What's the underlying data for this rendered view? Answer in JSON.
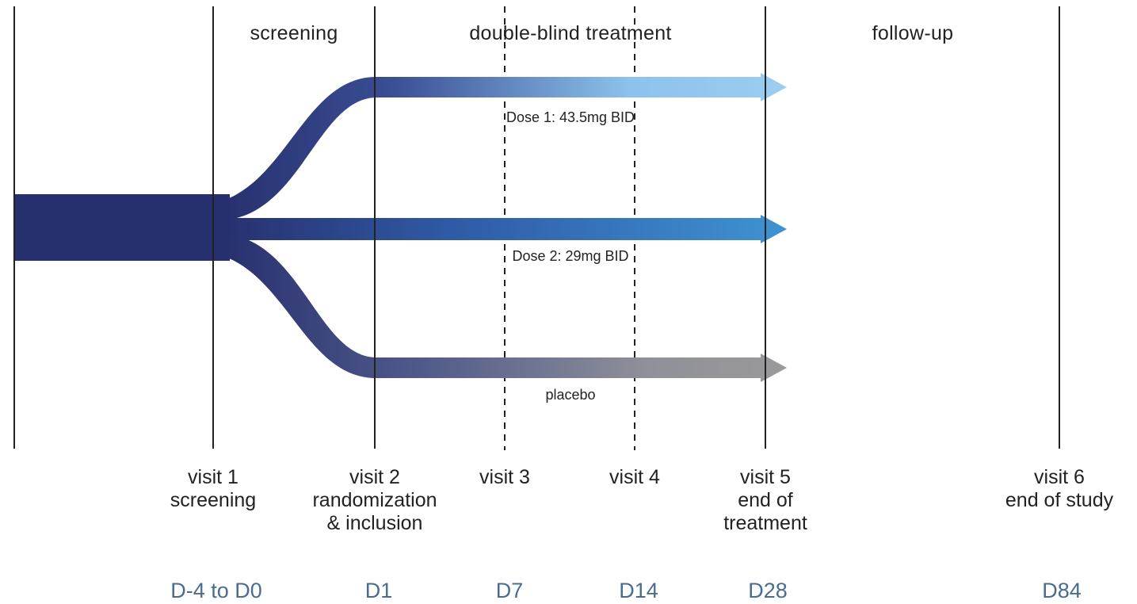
{
  "phases": {
    "screening": "screening",
    "treatment": "double-blind treatment",
    "followup": "follow-up"
  },
  "arms": {
    "dose1": "Dose 1: 43.5mg BID",
    "dose2": "Dose 2: 29mg BID",
    "placebo": "placebo"
  },
  "visits": [
    {
      "title": "visit 1",
      "line2": "screening",
      "line3": ""
    },
    {
      "title": "visit 2",
      "line2": "randomization",
      "line3": "& inclusion"
    },
    {
      "title": "visit 3",
      "line2": "",
      "line3": ""
    },
    {
      "title": "visit 4",
      "line2": "",
      "line3": ""
    },
    {
      "title": "visit 5",
      "line2": "end of",
      "line3": "treatment"
    },
    {
      "title": "visit 6",
      "line2": "end of study",
      "line3": ""
    }
  ],
  "days": [
    "D-4 to D0",
    "D1",
    "D7",
    "D14",
    "D28",
    "D84"
  ],
  "colors": {
    "start": "#27306e",
    "dose1_end": "#9dcdf2",
    "dose2_end": "#3d8fd0",
    "placebo_end": "#9a9a9a",
    "line": "#222222",
    "day_text": "#4a6d8f"
  }
}
